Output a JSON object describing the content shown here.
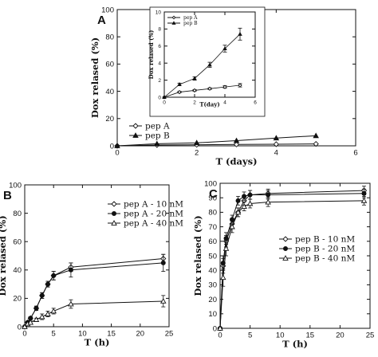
{
  "chart_data": [
    {
      "panel": "A",
      "type": "line",
      "xlabel": "T (days)",
      "ylabel": "Dox relased (%)",
      "xlim": [
        0,
        6
      ],
      "ylim": [
        0,
        100
      ],
      "xticks": [
        0,
        2,
        4,
        6
      ],
      "yticks": [
        0,
        20,
        40,
        60,
        80,
        100
      ],
      "legend": "lower-right",
      "grid": false,
      "series": [
        {
          "name": "pep A",
          "marker": "open-diamond",
          "x": [
            0,
            1,
            2,
            3,
            4,
            5
          ],
          "y": [
            0,
            0.6,
            0.8,
            1.0,
            1.2,
            1.4
          ]
        },
        {
          "name": "pep B",
          "marker": "filled-triangle",
          "x": [
            0,
            1,
            2,
            3,
            4,
            5
          ],
          "y": [
            0,
            1.5,
            2.2,
            3.8,
            5.7,
            7.4
          ]
        }
      ],
      "inset": {
        "xlabel": "T(day)",
        "ylabel": "Dox relased (%)",
        "xlim": [
          0,
          6
        ],
        "ylim": [
          0,
          10
        ],
        "xticks": [
          0,
          2,
          4,
          6
        ],
        "yticks": [
          0,
          2,
          4,
          6,
          8,
          10
        ],
        "legend": "top-left",
        "series": [
          {
            "name": "pep A",
            "x": [
              0,
              1,
              2,
              3,
              4,
              5
            ],
            "y": [
              0,
              0.6,
              0.8,
              1.0,
              1.2,
              1.4
            ],
            "err": [
              0,
              0.1,
              0.1,
              0.1,
              0.15,
              0.2
            ]
          },
          {
            "name": "pep B",
            "x": [
              0,
              1,
              2,
              3,
              4,
              5
            ],
            "y": [
              0,
              1.5,
              2.2,
              3.8,
              5.7,
              7.4
            ],
            "err": [
              0,
              0.15,
              0.2,
              0.3,
              0.4,
              0.7
            ]
          }
        ]
      }
    },
    {
      "panel": "B",
      "type": "line",
      "xlabel": "T (h)",
      "ylabel": "Dox relased (%)",
      "xlim": [
        0,
        25
      ],
      "ylim": [
        0,
        100
      ],
      "xticks": [
        0,
        5,
        10,
        15,
        20,
        25
      ],
      "yticks": [
        0,
        20,
        40,
        60,
        80,
        100
      ],
      "legend": "top-right",
      "grid": false,
      "series": [
        {
          "name": "pep A - 10 nM",
          "marker": "open-diamond",
          "x": [
            0,
            0.5,
            1,
            2,
            3,
            4,
            5,
            8,
            24
          ],
          "y": [
            0,
            3,
            6,
            13,
            22,
            30,
            36,
            42,
            48
          ],
          "err": [
            0,
            0.5,
            1,
            1.5,
            2,
            2,
            3,
            3,
            3
          ]
        },
        {
          "name": "pep A - 20 nM",
          "marker": "filled-circle",
          "x": [
            0,
            0.5,
            1,
            2,
            3,
            4,
            5,
            8,
            24
          ],
          "y": [
            0,
            3,
            6,
            13,
            22,
            30,
            36,
            40,
            45
          ],
          "err": [
            0,
            0.5,
            1,
            1.5,
            2,
            2,
            3,
            5,
            6
          ]
        },
        {
          "name": "pep A - 40 nM",
          "marker": "open-triangle",
          "x": [
            0,
            0.5,
            1,
            2,
            3,
            4,
            5,
            8,
            24
          ],
          "y": [
            0,
            2,
            3,
            5,
            7,
            9,
            11,
            16,
            18
          ],
          "err": [
            0,
            0.5,
            1,
            1,
            2,
            2,
            2,
            3,
            4
          ]
        }
      ]
    },
    {
      "panel": "C",
      "type": "line",
      "xlabel": "T (h)",
      "ylabel": "Dox relased (%)",
      "xlim": [
        0,
        25
      ],
      "ylim": [
        0,
        100
      ],
      "xticks": [
        0,
        5,
        10,
        15,
        20,
        25
      ],
      "yticks": [
        0,
        10,
        20,
        30,
        40,
        50,
        60,
        70,
        80,
        90,
        100
      ],
      "legend": "center-right",
      "grid": false,
      "series": [
        {
          "name": "pep B - 10 nM",
          "marker": "open-diamond",
          "x": [
            0,
            0.5,
            1,
            2,
            3,
            4,
            5,
            8,
            24
          ],
          "y": [
            0,
            43,
            60,
            72,
            80,
            88,
            92,
            93,
            95
          ],
          "err": [
            0,
            5,
            4,
            3,
            3,
            3,
            3,
            3,
            3
          ]
        },
        {
          "name": "pep B - 20 nM",
          "marker": "filled-circle",
          "x": [
            0,
            0.5,
            1,
            2,
            3,
            4,
            5,
            8,
            24
          ],
          "y": [
            0,
            45,
            62,
            75,
            88,
            91,
            92,
            92,
            93
          ],
          "err": [
            0,
            5,
            4,
            3,
            3,
            3,
            3,
            3,
            3
          ]
        },
        {
          "name": "pep B - 40 nM",
          "marker": "open-triangle",
          "x": [
            0,
            0.5,
            1,
            2,
            3,
            4,
            5,
            8,
            24
          ],
          "y": [
            0,
            35,
            55,
            70,
            80,
            84,
            86,
            87,
            88
          ],
          "err": [
            0,
            6,
            5,
            4,
            3,
            3,
            3,
            3,
            3
          ]
        }
      ]
    }
  ]
}
